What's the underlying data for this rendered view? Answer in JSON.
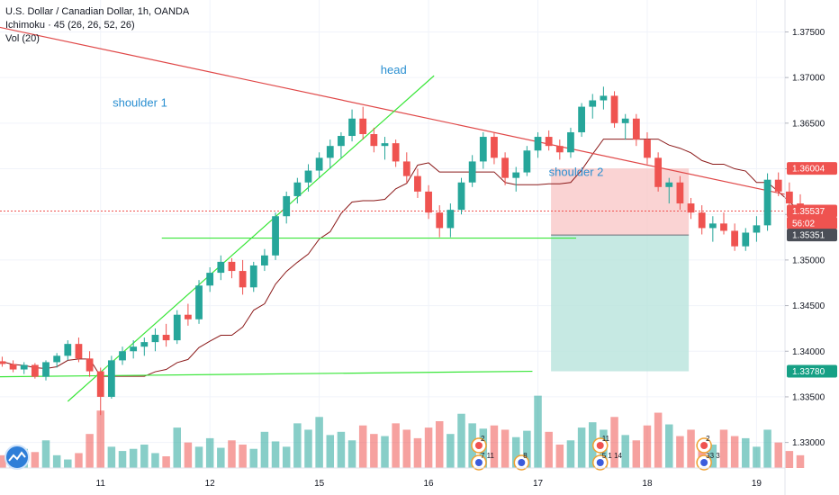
{
  "legend": {
    "title": "U.S. Dollar / Canadian Dollar, 1h, OANDA",
    "indicator1": "Ichimoku · 45 (26, 26, 52, 26)",
    "indicator2": "Vol (20)"
  },
  "colors": {
    "up": "#26a69a",
    "down": "#ef5350",
    "trend_red": "#e04848",
    "trend_green": "#39e639",
    "baseline": "#8b1a1a",
    "stop_zone": "#f9c8c8",
    "target_zone": "#b8e3dc",
    "tag_red": "#ef5350",
    "tag_dark": "#4a4e57",
    "tag_green": "#16a085",
    "annotation": "#2a8fd1"
  },
  "chart_data": {
    "type": "candlestick",
    "symbol": "USDCAD",
    "timeframe": "1h",
    "x_labels": [
      {
        "label": "11",
        "x": 10
      },
      {
        "label": "12",
        "x": 20
      },
      {
        "label": "15",
        "x": 30
      },
      {
        "label": "16",
        "x": 40
      },
      {
        "label": "17",
        "x": 50
      },
      {
        "label": "18",
        "x": 60
      },
      {
        "label": "19",
        "x": 70
      }
    ],
    "x_range": [
      0.8,
      72.6
    ],
    "ylim": [
      1.3272,
      1.3785
    ],
    "y_ticks": [
      "1.37500",
      "1.37000",
      "1.36500",
      "1.36000",
      "1.35500",
      "1.35000",
      "1.34500",
      "1.34000",
      "1.33500",
      "1.33000"
    ],
    "price_tags": [
      {
        "label": "1.36004",
        "value": 1.36004,
        "color": "#ef5350"
      },
      {
        "label": "1.35537",
        "value": 1.35537,
        "color": "#ef5350"
      },
      {
        "label": "56:02",
        "value": 1.35405,
        "color": "#ef5350"
      },
      {
        "label": "1.35351",
        "value": 1.35274,
        "color": "#4a4e57"
      },
      {
        "label": "1.33780",
        "value": 1.3378,
        "color": "#16a085"
      }
    ],
    "current_price": 1.35537,
    "candles": [
      [
        1.3389,
        1.3394,
        1.3383,
        1.3386
      ],
      [
        1.3386,
        1.339,
        1.3377,
        1.338
      ],
      [
        1.338,
        1.3388,
        1.3375,
        1.3385
      ],
      [
        1.3385,
        1.3387,
        1.337,
        1.3372
      ],
      [
        1.3372,
        1.339,
        1.3368,
        1.3388
      ],
      [
        1.3388,
        1.3398,
        1.3382,
        1.3395
      ],
      [
        1.3395,
        1.3412,
        1.339,
        1.3408
      ],
      [
        1.3408,
        1.3415,
        1.3388,
        1.3392
      ],
      [
        1.3392,
        1.34,
        1.3372,
        1.3378
      ],
      [
        1.3378,
        1.3382,
        1.333,
        1.335
      ],
      [
        1.335,
        1.3395,
        1.3348,
        1.339
      ],
      [
        1.339,
        1.3405,
        1.3385,
        1.34
      ],
      [
        1.34,
        1.3412,
        1.3392,
        1.3405
      ],
      [
        1.3405,
        1.3415,
        1.3395,
        1.341
      ],
      [
        1.341,
        1.3425,
        1.34,
        1.3418
      ],
      [
        1.3418,
        1.343,
        1.3405,
        1.3412
      ],
      [
        1.3412,
        1.3445,
        1.3408,
        1.344
      ],
      [
        1.344,
        1.3452,
        1.3428,
        1.3435
      ],
      [
        1.3435,
        1.3478,
        1.343,
        1.3472
      ],
      [
        1.3472,
        1.3492,
        1.3465,
        1.3486
      ],
      [
        1.3486,
        1.3505,
        1.3478,
        1.3498
      ],
      [
        1.3498,
        1.3502,
        1.348,
        1.3488
      ],
      [
        1.3488,
        1.35,
        1.3462,
        1.347
      ],
      [
        1.347,
        1.3498,
        1.3465,
        1.3494
      ],
      [
        1.3494,
        1.3512,
        1.3488,
        1.3505
      ],
      [
        1.3505,
        1.3552,
        1.35,
        1.3548
      ],
      [
        1.3548,
        1.3575,
        1.354,
        1.357
      ],
      [
        1.357,
        1.359,
        1.3562,
        1.3585
      ],
      [
        1.3585,
        1.3605,
        1.3575,
        1.3598
      ],
      [
        1.3598,
        1.3618,
        1.359,
        1.3612
      ],
      [
        1.3612,
        1.3632,
        1.36,
        1.3625
      ],
      [
        1.3625,
        1.364,
        1.3612,
        1.3636
      ],
      [
        1.3636,
        1.3665,
        1.363,
        1.3655
      ],
      [
        1.3655,
        1.3668,
        1.3632,
        1.3638
      ],
      [
        1.3638,
        1.3645,
        1.3618,
        1.3625
      ],
      [
        1.3625,
        1.3635,
        1.361,
        1.3628
      ],
      [
        1.3628,
        1.3632,
        1.3602,
        1.3608
      ],
      [
        1.3608,
        1.3618,
        1.3585,
        1.3592
      ],
      [
        1.3592,
        1.36,
        1.3568,
        1.3575
      ],
      [
        1.3575,
        1.3582,
        1.3545,
        1.3552
      ],
      [
        1.3552,
        1.356,
        1.3525,
        1.3535
      ],
      [
        1.3535,
        1.3562,
        1.3525,
        1.3555
      ],
      [
        1.3555,
        1.359,
        1.355,
        1.3585
      ],
      [
        1.3585,
        1.3615,
        1.358,
        1.3608
      ],
      [
        1.3608,
        1.364,
        1.36,
        1.3635
      ],
      [
        1.3635,
        1.364,
        1.3605,
        1.3612
      ],
      [
        1.3612,
        1.3618,
        1.3582,
        1.359
      ],
      [
        1.359,
        1.3602,
        1.3575,
        1.3596
      ],
      [
        1.3596,
        1.3625,
        1.3592,
        1.362
      ],
      [
        1.362,
        1.364,
        1.3612,
        1.3635
      ],
      [
        1.3635,
        1.3642,
        1.362,
        1.3625
      ],
      [
        1.3625,
        1.3632,
        1.361,
        1.3618
      ],
      [
        1.3618,
        1.3645,
        1.3612,
        1.364
      ],
      [
        1.364,
        1.3672,
        1.3635,
        1.3668
      ],
      [
        1.3668,
        1.3682,
        1.3655,
        1.3675
      ],
      [
        1.3675,
        1.369,
        1.3665,
        1.368
      ],
      [
        1.368,
        1.3685,
        1.3645,
        1.365
      ],
      [
        1.365,
        1.366,
        1.3632,
        1.3655
      ],
      [
        1.3655,
        1.366,
        1.3625,
        1.3632
      ],
      [
        1.3632,
        1.364,
        1.3605,
        1.3612
      ],
      [
        1.3612,
        1.3618,
        1.3575,
        1.358
      ],
      [
        1.358,
        1.359,
        1.3562,
        1.3585
      ],
      [
        1.3585,
        1.3592,
        1.3555,
        1.3562
      ],
      [
        1.3562,
        1.3568,
        1.3545,
        1.3552
      ],
      [
        1.3552,
        1.356,
        1.3528,
        1.3535
      ],
      [
        1.3535,
        1.3548,
        1.352,
        1.354
      ],
      [
        1.354,
        1.3552,
        1.3528,
        1.3532
      ],
      [
        1.3532,
        1.354,
        1.351,
        1.3515
      ],
      [
        1.3515,
        1.3535,
        1.351,
        1.353
      ],
      [
        1.353,
        1.3548,
        1.352,
        1.3538
      ],
      [
        1.3538,
        1.3595,
        1.3532,
        1.3588
      ],
      [
        1.3588,
        1.3596,
        1.357,
        1.3575
      ],
      [
        1.3575,
        1.3585,
        1.3558,
        1.3562
      ],
      [
        1.3562,
        1.3572,
        1.355,
        1.3554
      ]
    ],
    "volumes": [
      1.2,
      1.1,
      1.8,
      1.5,
      2.6,
      1.2,
      0.8,
      1.4,
      3.2,
      5.4,
      2.0,
      1.6,
      1.8,
      2.2,
      1.4,
      1.1,
      3.8,
      2.4,
      2.0,
      2.8,
      1.9,
      2.6,
      2.2,
      1.8,
      3.4,
      2.5,
      2.0,
      4.2,
      3.6,
      4.8,
      3.1,
      3.4,
      2.6,
      4.0,
      3.2,
      3.0,
      4.2,
      3.6,
      2.8,
      3.8,
      4.4,
      3.2,
      5.1,
      4.2,
      3.7,
      4.0,
      3.6,
      2.9,
      3.5,
      6.8,
      3.4,
      2.2,
      2.6,
      3.8,
      4.3,
      3.6,
      4.8,
      3.1,
      2.6,
      4.0,
      5.2,
      4.1,
      3.0,
      3.6,
      1.8,
      2.2,
      3.6,
      3.0,
      2.8,
      2.0,
      3.6,
      2.4,
      1.6,
      1.2
    ],
    "annotations": [
      {
        "text": "shoulder 1",
        "x": 13.6,
        "y": 1.3668
      },
      {
        "text": "head",
        "x": 36.8,
        "y": 1.3704
      },
      {
        "text": "shoulder 2",
        "x": 53.5,
        "y": 1.3592
      }
    ],
    "events": [
      {
        "x": 44.6,
        "row": 1,
        "label": "2"
      },
      {
        "x": 44.6,
        "row": 2,
        "label": "7 11"
      },
      {
        "x": 48.5,
        "row": 2,
        "label": "8"
      },
      {
        "x": 55.7,
        "row": 1,
        "label": "11"
      },
      {
        "x": 55.7,
        "row": 2,
        "label": "5 1 14"
      },
      {
        "x": 65.2,
        "row": 1,
        "label": "2"
      },
      {
        "x": 65.2,
        "row": 2,
        "label": "33 3"
      }
    ]
  }
}
